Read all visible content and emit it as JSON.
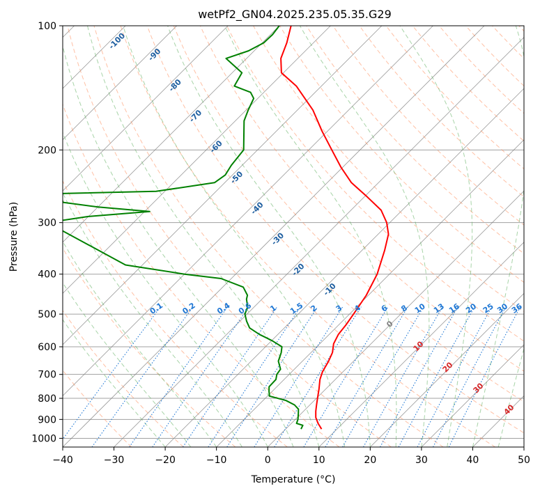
{
  "chart_data": {
    "type": "line",
    "subtype": "skew-T log-p diagram",
    "title": "wetPf2_GN04.2025.235.05.35.G29",
    "xlabel": "Temperature (°C)",
    "ylabel": "Pressure (hPa)",
    "xlim": [
      -40,
      50
    ],
    "ylim": [
      1050,
      100
    ],
    "y_scale": "log",
    "grid": true,
    "x_ticks": [
      -40,
      -30,
      -20,
      -10,
      0,
      10,
      20,
      30,
      40,
      50
    ],
    "x_tick_labels": [
      "−40",
      "−30",
      "−20",
      "−10",
      "0",
      "10",
      "20",
      "30",
      "40",
      "50"
    ],
    "y_ticks": [
      1000,
      900,
      800,
      700,
      600,
      500,
      400,
      300,
      200,
      100
    ],
    "y_tick_labels": [
      "1000",
      "900",
      "800",
      "700",
      "600",
      "500",
      "400",
      "300",
      "200",
      "100"
    ],
    "series": [
      {
        "role": "temperature",
        "color": "#ff0000",
        "points": [
          [
            950,
            7.0
          ],
          [
            920,
            5.2
          ],
          [
            890,
            3.6
          ],
          [
            860,
            2.4
          ],
          [
            830,
            1.3
          ],
          [
            800,
            0.2
          ],
          [
            760,
            -1.3
          ],
          [
            720,
            -3.0
          ],
          [
            690,
            -4.0
          ],
          [
            650,
            -4.9
          ],
          [
            620,
            -5.8
          ],
          [
            590,
            -7.3
          ],
          [
            560,
            -8.2
          ],
          [
            530,
            -8.6
          ],
          [
            500,
            -9.2
          ],
          [
            450,
            -10.4
          ],
          [
            400,
            -12.4
          ],
          [
            350,
            -15.6
          ],
          [
            320,
            -18.0
          ],
          [
            300,
            -20.6
          ],
          [
            280,
            -24.1
          ],
          [
            260,
            -29.4
          ],
          [
            240,
            -35.3
          ],
          [
            220,
            -40.4
          ],
          [
            200,
            -45.5
          ],
          [
            180,
            -51.1
          ],
          [
            160,
            -57.0
          ],
          [
            140,
            -64.9
          ],
          [
            130,
            -70.4
          ],
          [
            120,
            -73.3
          ],
          [
            110,
            -75.2
          ],
          [
            100,
            -77.7
          ]
        ]
      },
      {
        "role": "dewpoint",
        "color": "#008000",
        "points": [
          [
            950,
            3.0
          ],
          [
            930,
            2.6
          ],
          [
            920,
            1.0
          ],
          [
            900,
            0.5
          ],
          [
            870,
            -0.6
          ],
          [
            850,
            -1.4
          ],
          [
            830,
            -3.0
          ],
          [
            810,
            -5.5
          ],
          [
            790,
            -9.6
          ],
          [
            770,
            -10.6
          ],
          [
            750,
            -11.5
          ],
          [
            720,
            -11.6
          ],
          [
            700,
            -12.4
          ],
          [
            680,
            -12.7
          ],
          [
            650,
            -14.7
          ],
          [
            620,
            -15.8
          ],
          [
            600,
            -16.8
          ],
          [
            580,
            -19.9
          ],
          [
            560,
            -23.6
          ],
          [
            540,
            -26.8
          ],
          [
            520,
            -28.7
          ],
          [
            500,
            -30.4
          ],
          [
            480,
            -31.3
          ],
          [
            460,
            -33.0
          ],
          [
            450,
            -33.6
          ],
          [
            430,
            -36.0
          ],
          [
            410,
            -42.0
          ],
          [
            400,
            -50.0
          ],
          [
            380,
            -63.3
          ],
          [
            300,
            -86.8
          ],
          [
            290,
            -80.0
          ],
          [
            282,
            -69.0
          ],
          [
            275,
            -80.0
          ],
          [
            268,
            -87.7
          ],
          [
            255,
            -90.0
          ],
          [
            252,
            -71.7
          ],
          [
            240,
            -62.0
          ],
          [
            230,
            -61.4
          ],
          [
            218,
            -62.1
          ],
          [
            200,
            -62.7
          ],
          [
            170,
            -68.3
          ],
          [
            160,
            -69.6
          ],
          [
            150,
            -70.8
          ],
          [
            145,
            -72.6
          ],
          [
            140,
            -77.0
          ],
          [
            130,
            -78.1
          ],
          [
            125,
            -81.0
          ],
          [
            120,
            -84.0
          ],
          [
            115,
            -81.1
          ],
          [
            110,
            -79.7
          ],
          [
            105,
            -79.6
          ],
          [
            100,
            -80.0
          ]
        ]
      }
    ],
    "reference_lines": {
      "dry_adiabat_color": "#ff8c5a",
      "moist_adiabat_color": "#5fae5f",
      "mixing_ratio_color": "#1f77d4",
      "isotherm_color": "#808080",
      "isobar_color": "#a0a0a0",
      "zero_isotherm_label": "0"
    },
    "mixing_ratio_labels": [
      "0.1",
      "0.2",
      "0.4",
      "0.6",
      "1",
      "1.5",
      "2",
      "3",
      "4",
      "6",
      "8",
      "10",
      "13",
      "16",
      "20",
      "25",
      "30",
      "36"
    ],
    "wet_bulb_labels_cold": [
      "-100",
      "-90",
      "-80",
      "-70",
      "-60",
      "-50",
      "-40",
      "-30",
      "-20",
      "-10"
    ],
    "wet_bulb_labels_warm": [
      "10",
      "20",
      "30",
      "40"
    ]
  }
}
